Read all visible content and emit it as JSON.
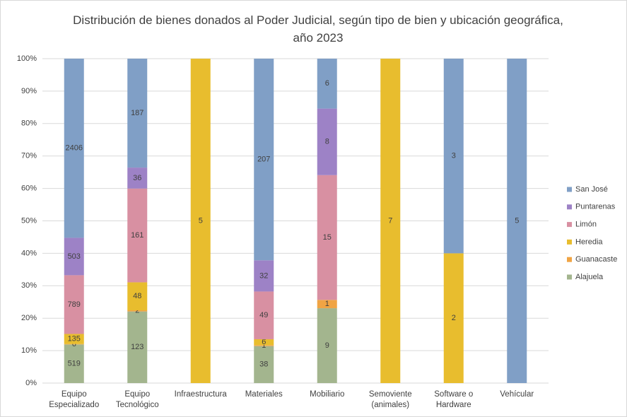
{
  "chart_data": {
    "type": "stacked_bar_100",
    "title": "Distribución de bienes donados al Poder Judicial, según tipo de bien y ubicación geográfica, año 2023",
    "categories": [
      "Equipo Especializado",
      "Equipo Tecnológico",
      "Infraestructura",
      "Materiales",
      "Mobiliario",
      "Semoviente (animales)",
      "Software o Hardware",
      "Vehícular"
    ],
    "series": [
      {
        "name": "Alajuela",
        "color": "#a3b58e",
        "values": [
          519,
          123,
          null,
          38,
          9,
          null,
          null,
          null
        ]
      },
      {
        "name": "Guanacaste",
        "color": "#f0a444",
        "values": [
          6,
          2,
          null,
          1,
          1,
          null,
          null,
          null
        ]
      },
      {
        "name": "Heredia",
        "color": "#e8bd2e",
        "values": [
          135,
          48,
          5,
          6,
          null,
          7,
          2,
          null
        ]
      },
      {
        "name": "Limón",
        "color": "#d890a2",
        "values": [
          789,
          161,
          null,
          49,
          15,
          null,
          null,
          null
        ]
      },
      {
        "name": "Puntarenas",
        "color": "#9d82c6",
        "values": [
          503,
          36,
          null,
          32,
          8,
          null,
          null,
          null
        ]
      },
      {
        "name": "San José",
        "color": "#809fc6",
        "values": [
          2406,
          187,
          null,
          207,
          6,
          null,
          3,
          5
        ]
      }
    ],
    "ylim": [
      0,
      100
    ],
    "yticks": [
      {
        "value": 0,
        "label": "0%"
      },
      {
        "value": 10,
        "label": "10%"
      },
      {
        "value": 20,
        "label": "20%"
      },
      {
        "value": 30,
        "label": "30%"
      },
      {
        "value": 40,
        "label": "40%"
      },
      {
        "value": 50,
        "label": "50%"
      },
      {
        "value": 60,
        "label": "60%"
      },
      {
        "value": 70,
        "label": "70%"
      },
      {
        "value": 80,
        "label": "80%"
      },
      {
        "value": 90,
        "label": "90%"
      },
      {
        "value": 100,
        "label": "100%"
      }
    ],
    "grid": true,
    "legend": "right"
  }
}
